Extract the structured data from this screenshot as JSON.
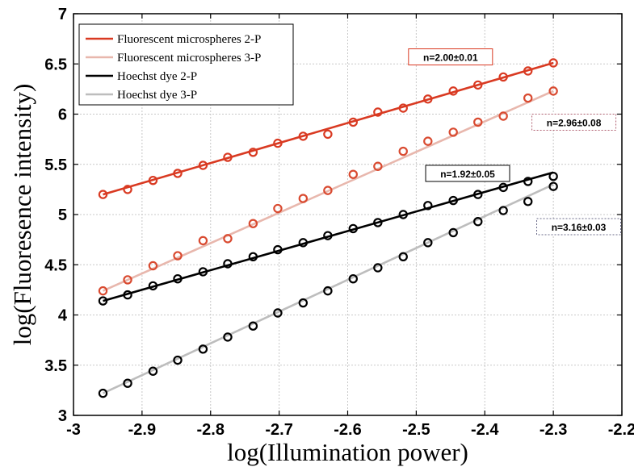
{
  "chart_data": {
    "type": "scatter",
    "xlabel": "log(Illumination power)",
    "ylabel": "log(Fluoresence intensity)",
    "xlim": [
      -3,
      -2.2
    ],
    "ylim": [
      3,
      7
    ],
    "xticks": [
      -3,
      -2.9,
      -2.8,
      -2.7,
      -2.6,
      -2.5,
      -2.4,
      -2.3,
      -2.2
    ],
    "yticks": [
      3,
      3.5,
      4,
      4.5,
      5,
      5.5,
      6,
      6.5,
      7
    ],
    "xtick_labels": [
      "-3",
      "-2.9",
      "-2.8",
      "-2.7",
      "-2.6",
      "-2.5",
      "-2.4",
      "-2.3",
      "-2.2"
    ],
    "ytick_labels": [
      "3",
      "3.5",
      "4",
      "4.5",
      "5",
      "5.5",
      "6",
      "6.5",
      "7"
    ],
    "grid": true,
    "legend_position": "top-left",
    "x": [
      -2.957,
      -2.921,
      -2.884,
      -2.848,
      -2.811,
      -2.775,
      -2.738,
      -2.702,
      -2.665,
      -2.629,
      -2.592,
      -2.556,
      -2.519,
      -2.483,
      -2.446,
      -2.41,
      -2.373,
      -2.337,
      -2.3
    ],
    "series": [
      {
        "name": "Fluorescent microspheres 2-P",
        "color": "#d93a22",
        "values": [
          5.2,
          5.25,
          5.34,
          5.41,
          5.49,
          5.57,
          5.62,
          5.71,
          5.78,
          5.8,
          5.92,
          6.02,
          6.06,
          6.15,
          6.23,
          6.29,
          6.37,
          6.43,
          6.51
        ],
        "fit": [
          -2.957,
          5.2,
          -2.3,
          6.51
        ]
      },
      {
        "name": "Fluorescent microspheres 3-P",
        "color": "#e8b7ad",
        "marker_color": "#d94a30",
        "values": [
          4.24,
          4.35,
          4.49,
          4.59,
          4.74,
          4.76,
          4.91,
          5.06,
          5.16,
          5.24,
          5.4,
          5.48,
          5.63,
          5.73,
          5.82,
          5.92,
          5.98,
          6.16,
          6.23
        ],
        "fit": [
          -2.957,
          4.24,
          -2.3,
          6.23
        ]
      },
      {
        "name": "Hoechst dye 2-P",
        "color": "#000000",
        "values": [
          4.14,
          4.2,
          4.29,
          4.36,
          4.43,
          4.51,
          4.58,
          4.65,
          4.72,
          4.79,
          4.86,
          4.92,
          5.0,
          5.09,
          5.14,
          5.2,
          5.27,
          5.33,
          5.38
        ],
        "fit": [
          -2.957,
          4.14,
          -2.3,
          5.42
        ]
      },
      {
        "name": "Hoechst dye 3-P",
        "color": "#bdbdbd",
        "marker_color": "#000000",
        "values": [
          3.22,
          3.32,
          3.44,
          3.55,
          3.66,
          3.78,
          3.89,
          4.02,
          4.12,
          4.24,
          4.36,
          4.47,
          4.58,
          4.72,
          4.82,
          4.93,
          5.04,
          5.13,
          5.28
        ],
        "fit": [
          -2.957,
          3.22,
          -2.3,
          5.3
        ]
      }
    ],
    "annotations": [
      {
        "text": "n=2.00±0.01",
        "x": -2.45,
        "y": 6.57,
        "border": "#d93a22",
        "dash": "none"
      },
      {
        "text": "n=2.96±0.08",
        "x": -2.27,
        "y": 5.92,
        "border": "#b06070",
        "dash": "2 2"
      },
      {
        "text": "n=1.92±0.05",
        "x": -2.425,
        "y": 5.41,
        "border": "#000000",
        "dash": "none"
      },
      {
        "text": "n=3.16±0.03",
        "x": -2.263,
        "y": 4.88,
        "border": "#6a6a8a",
        "dash": "2 2"
      }
    ]
  }
}
